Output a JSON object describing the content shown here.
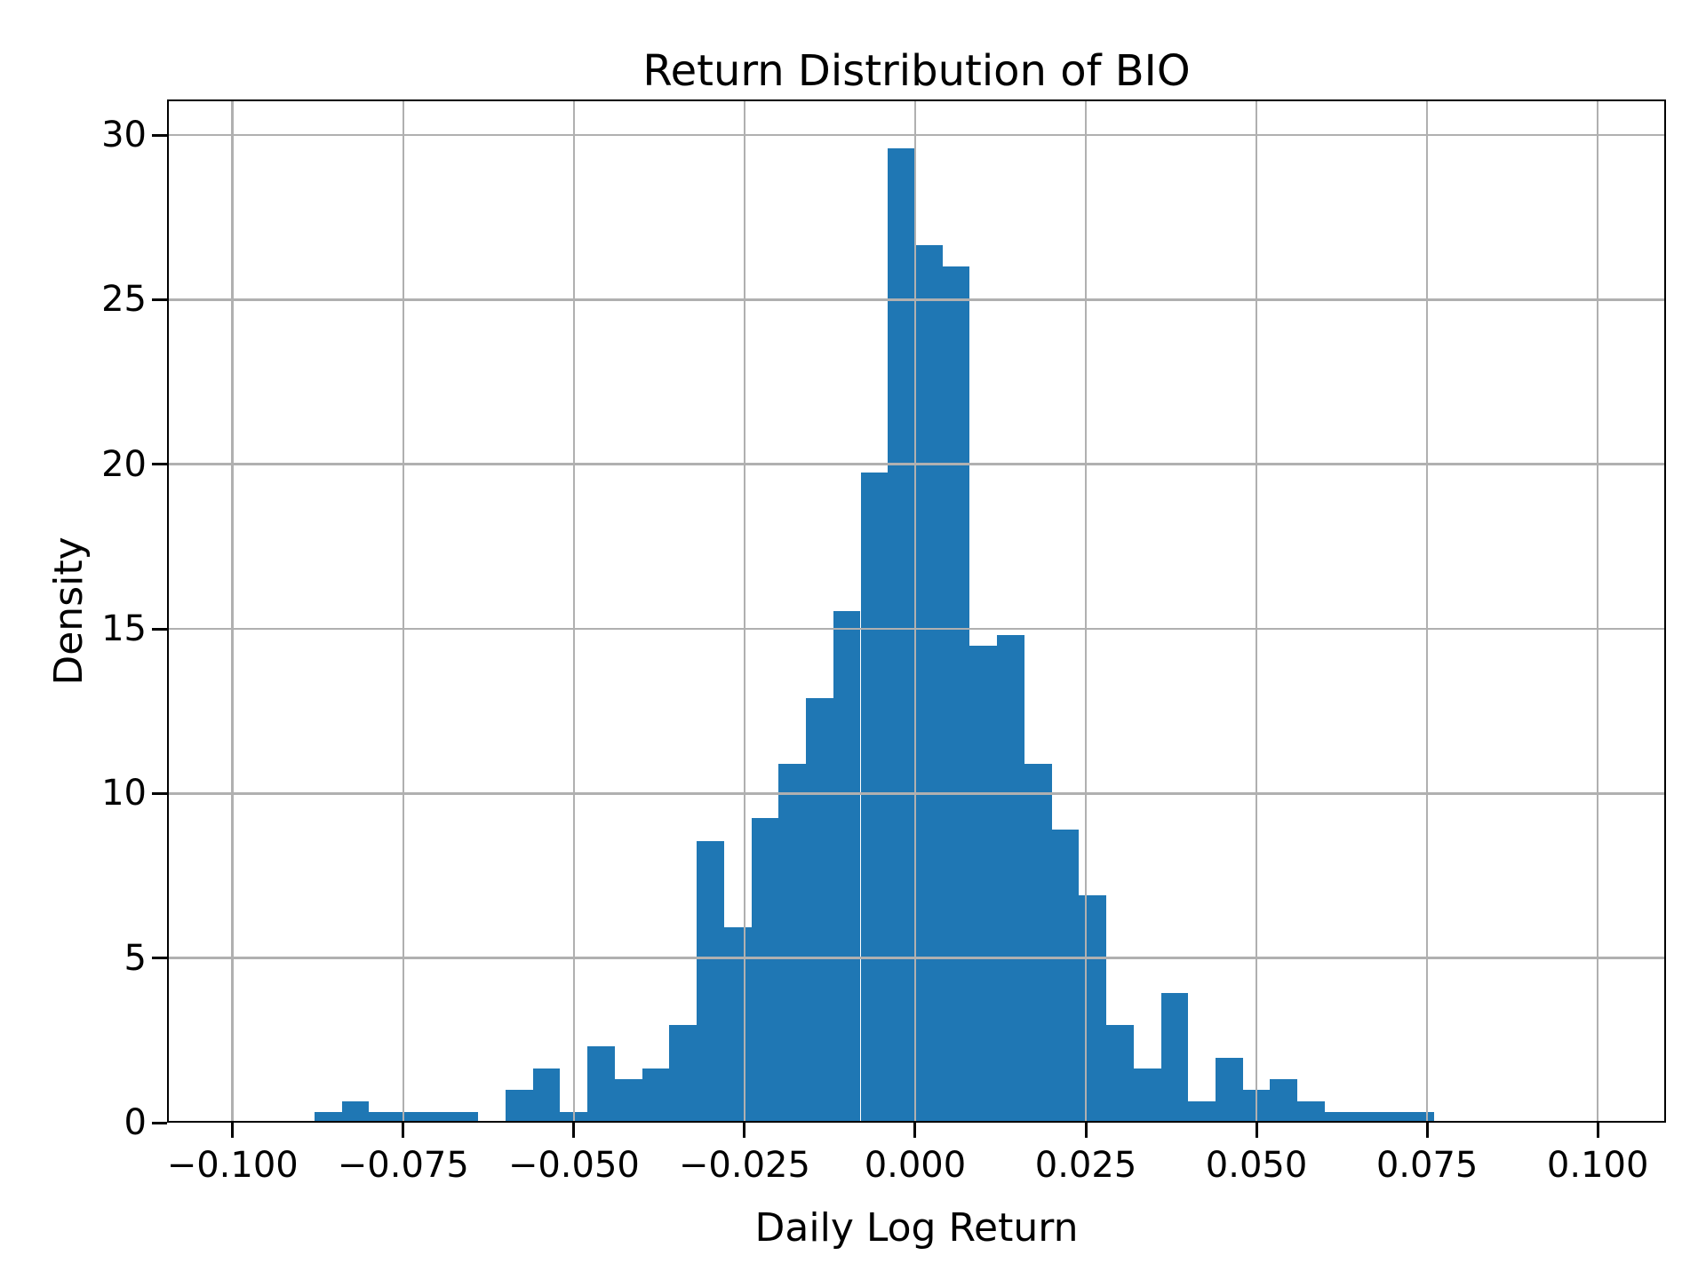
{
  "chart_data": {
    "type": "bar",
    "subtype": "histogram-density",
    "title": "Return Distribution of BIO",
    "xlabel": "Daily Log Return",
    "ylabel": "Density",
    "bar_color": "#1f77b4",
    "grid_color": "#b0b0b0",
    "axis_color": "#000000",
    "background_color": "#ffffff",
    "grid": true,
    "grid_above_bars": true,
    "legend": "none",
    "xlim": [
      -0.1096,
      0.11
    ],
    "ylim": [
      0,
      31.08
    ],
    "bin_width": 0.004,
    "bin_edges": [
      -0.088,
      -0.084,
      -0.08,
      -0.076,
      -0.072,
      -0.068,
      -0.064,
      -0.06,
      -0.056,
      -0.052,
      -0.048,
      -0.044,
      -0.04,
      -0.036,
      -0.032,
      -0.028,
      -0.024,
      -0.02,
      -0.016,
      -0.012,
      -0.008,
      -0.004,
      0.0,
      0.004,
      0.008,
      0.012,
      0.016,
      0.02,
      0.024,
      0.028,
      0.032,
      0.036,
      0.04,
      0.044,
      0.048,
      0.052,
      0.056,
      0.06,
      0.064,
      0.068,
      0.072,
      0.076
    ],
    "densities": [
      0.33,
      0.66,
      0.33,
      0.33,
      0.33,
      0.33,
      0,
      0.99,
      1.65,
      0.33,
      2.31,
      1.32,
      1.65,
      2.96,
      8.56,
      5.93,
      9.25,
      10.9,
      12.9,
      15.55,
      19.76,
      29.6,
      26.65,
      26.0,
      14.5,
      14.8,
      10.9,
      8.9,
      6.9,
      2.96,
      1.65,
      3.95,
      0.66,
      1.98,
      0.99,
      1.32,
      0.66,
      0.33,
      0.33,
      0.33,
      0.33
    ],
    "xticks": {
      "values": [
        -0.1,
        -0.075,
        -0.05,
        -0.025,
        0.0,
        0.025,
        0.05,
        0.075,
        0.1
      ],
      "labels": [
        "−0.100",
        "−0.075",
        "−0.050",
        "−0.025",
        "0.000",
        "0.025",
        "0.050",
        "0.075",
        "0.100"
      ]
    },
    "yticks": {
      "values": [
        0,
        5,
        10,
        15,
        20,
        25,
        30
      ],
      "labels": [
        "0",
        "5",
        "10",
        "15",
        "20",
        "25",
        "30"
      ]
    }
  }
}
